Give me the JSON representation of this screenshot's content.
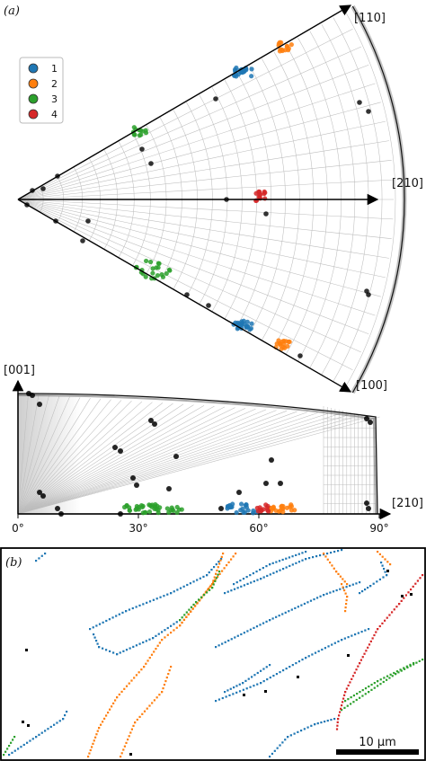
{
  "panel_a": {
    "label": "(a)",
    "directions": {
      "d110": "[110]",
      "d210_top": "[210]",
      "d100": "[100]",
      "d001": "[001]",
      "d210_bottom": "[210]"
    },
    "legend": {
      "items": [
        {
          "label": "1",
          "color": "#1f77b4"
        },
        {
          "label": "2",
          "color": "#ff7f0e"
        },
        {
          "label": "3",
          "color": "#2ca02c"
        },
        {
          "label": "4",
          "color": "#d62728"
        }
      ]
    },
    "x_axis": {
      "ticks": [
        "0°",
        "30°",
        "60°",
        "90°"
      ]
    }
  },
  "panel_b": {
    "label": "(b)",
    "scale_bar": "10 μm"
  },
  "colors": {
    "g1": "#1f77b4",
    "g2": "#ff7f0e",
    "g3": "#2ca02c",
    "g4": "#d62728",
    "other": "#000000"
  }
}
